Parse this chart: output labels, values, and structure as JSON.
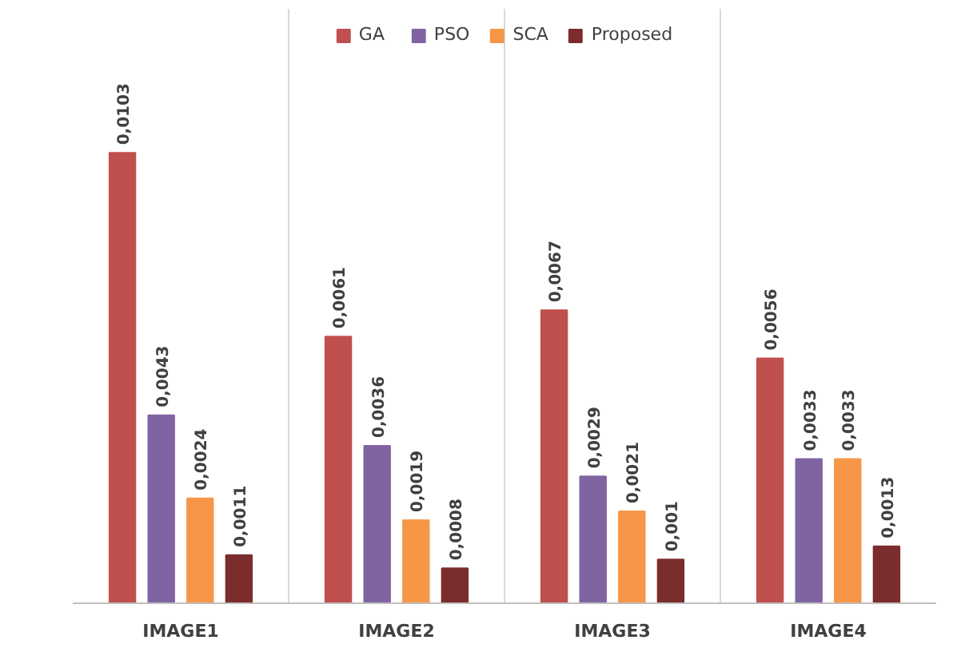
{
  "chart_data": {
    "type": "bar",
    "categories": [
      "IMAGE1",
      "IMAGE2",
      "IMAGE3",
      "IMAGE4"
    ],
    "series": [
      {
        "name": "GA",
        "color": "#c0504d",
        "values": [
          0.0103,
          0.0061,
          0.0067,
          0.0056
        ],
        "value_labels": [
          "0,0103",
          "0,0061",
          "0,0067",
          "0,0056"
        ]
      },
      {
        "name": "PSO",
        "color": "#8064a2",
        "values": [
          0.0043,
          0.0036,
          0.0029,
          0.0033
        ],
        "value_labels": [
          "0,0043",
          "0,0036",
          "0,0029",
          "0,0033"
        ]
      },
      {
        "name": "SCA",
        "color": "#f79646",
        "values": [
          0.0024,
          0.0019,
          0.0021,
          0.0033
        ],
        "value_labels": [
          "0,0024",
          "0,0019",
          "0,0021",
          "0,0033"
        ]
      },
      {
        "name": "Proposed",
        "color": "#7b2c2c",
        "values": [
          0.0011,
          0.0008,
          0.001,
          0.0013
        ],
        "value_labels": [
          "0,0011",
          "0,0008",
          "0,001",
          "0,0013"
        ]
      }
    ],
    "legend": "top"
  }
}
